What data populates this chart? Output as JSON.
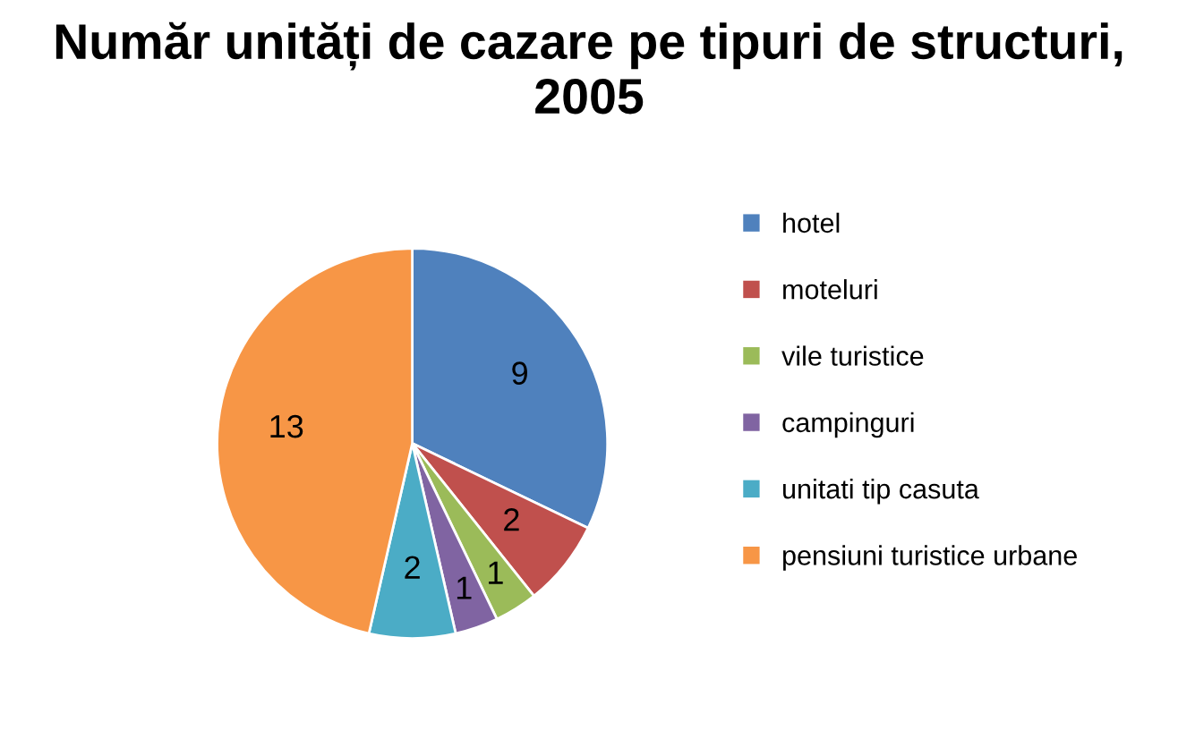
{
  "chart_data": {
    "type": "pie",
    "title": "Număr unități de cazare pe tipuri de structuri, 2005",
    "categories": [
      "hotel",
      "moteluri",
      "vile turistice",
      "campinguri",
      "unitati tip casuta",
      "pensiuni turistice urbane"
    ],
    "values": [
      9,
      2,
      1,
      1,
      2,
      13
    ],
    "colors": [
      "#4f81bd",
      "#c0504d",
      "#9bbb59",
      "#8064a2",
      "#4bacc6",
      "#f79646"
    ],
    "data_labels": true,
    "legend": "right"
  }
}
